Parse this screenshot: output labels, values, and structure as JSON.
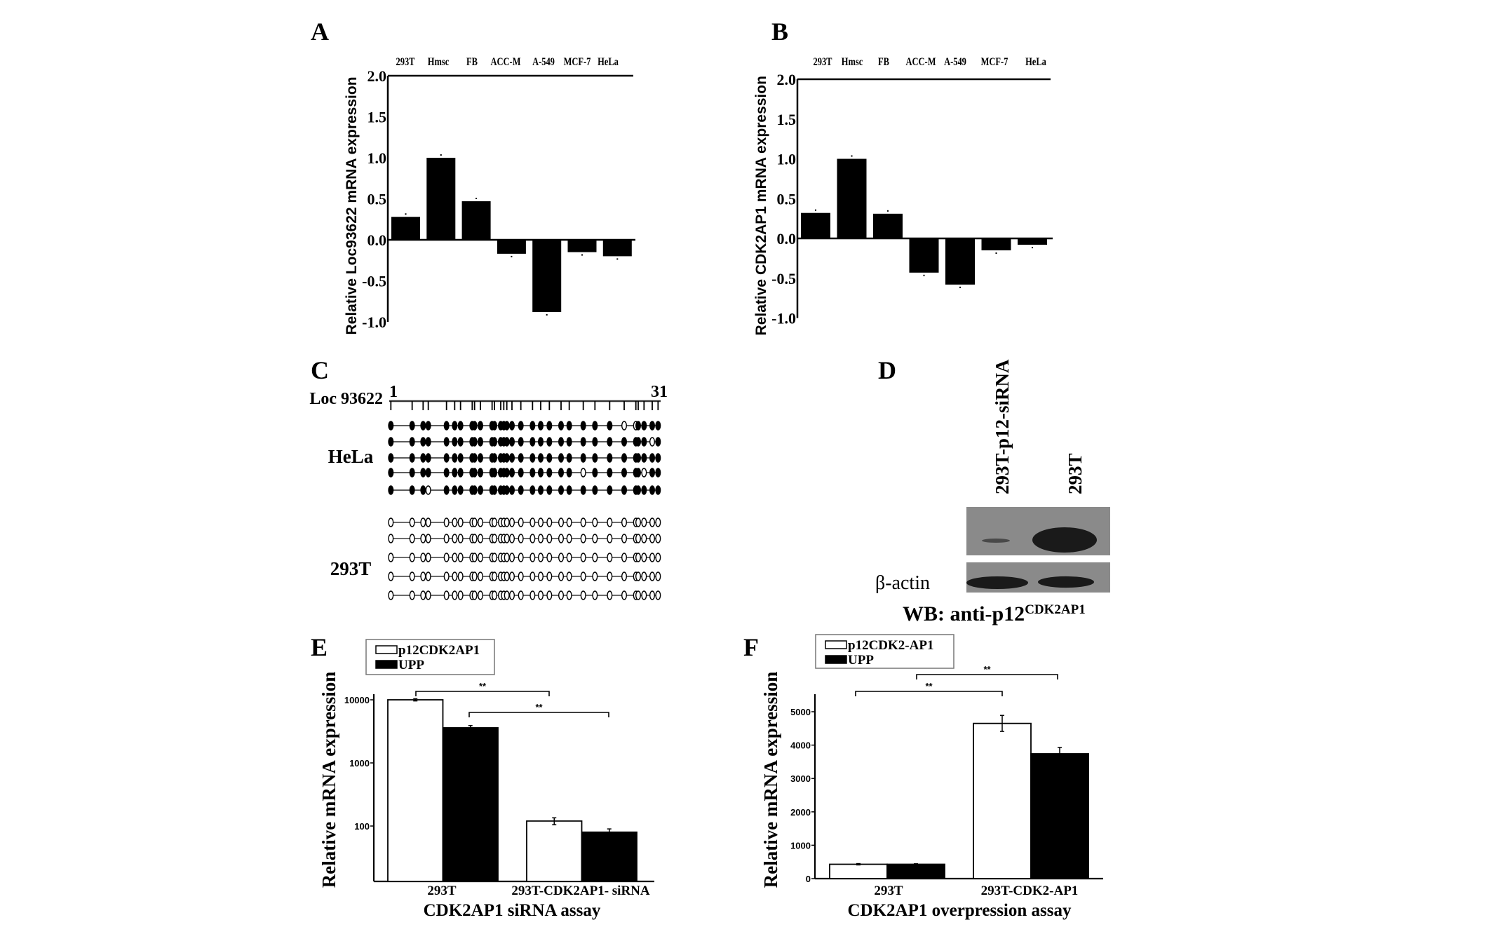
{
  "panel_letters": [
    "A",
    "B",
    "C",
    "D",
    "E",
    "F"
  ],
  "chart_data": [
    {
      "panel": "A",
      "type": "bar",
      "categories": [
        "293T",
        "Hmsc",
        "FB",
        "ACC-M",
        "A-549",
        "MCF-7",
        "HeLa"
      ],
      "values": [
        0.28,
        1.0,
        0.47,
        -0.17,
        -0.88,
        -0.15,
        -0.2
      ],
      "ylabel": "Relative Loc93622 mRNA expression",
      "ylim": [
        -1.0,
        2.0
      ],
      "yticks": [
        "2.0",
        "1.5",
        "1.0",
        "0.5",
        "0.0",
        "-0.5",
        "-1.0"
      ]
    },
    {
      "panel": "B",
      "type": "bar",
      "categories": [
        "293T",
        "Hmsc",
        "FB",
        "ACC-M",
        "A-549",
        "MCF-7",
        "HeLa"
      ],
      "values": [
        0.32,
        1.0,
        0.31,
        -0.43,
        -0.58,
        -0.15,
        -0.08
      ],
      "ylabel": "Relative CDK2AP1 mRNA expression",
      "ylim": [
        -1.0,
        2.0
      ],
      "yticks": [
        "2.0",
        "1.5",
        "1.0",
        "0.5",
        "0.0",
        "-0.5",
        "-1.0"
      ]
    },
    {
      "panel": "C",
      "type": "heatmap",
      "label": "Loc 93622",
      "start_label": "1",
      "end_label": "31",
      "groups": [
        {
          "name": "HeLa",
          "rows": [
            [
              1,
              1,
              1,
              1,
              1,
              1,
              1,
              1,
              1,
              1,
              1,
              1,
              1,
              1,
              1,
              1,
              1,
              1,
              1,
              1,
              1,
              1,
              1,
              1,
              1,
              0,
              0,
              1,
              1,
              1,
              1
            ],
            [
              1,
              1,
              1,
              1,
              1,
              1,
              1,
              1,
              1,
              1,
              1,
              1,
              1,
              1,
              1,
              1,
              1,
              1,
              1,
              1,
              1,
              1,
              1,
              1,
              1,
              1,
              1,
              1,
              1,
              0,
              1
            ],
            [
              1,
              1,
              1,
              1,
              1,
              1,
              1,
              1,
              1,
              1,
              1,
              1,
              1,
              1,
              1,
              1,
              1,
              1,
              1,
              1,
              1,
              1,
              1,
              1,
              1,
              1,
              1,
              1,
              1,
              1,
              1
            ],
            [
              1,
              1,
              1,
              1,
              1,
              1,
              1,
              1,
              1,
              1,
              1,
              1,
              1,
              1,
              1,
              1,
              1,
              1,
              1,
              1,
              1,
              1,
              0,
              1,
              1,
              1,
              1,
              1,
              0,
              1,
              1
            ],
            [
              1,
              1,
              1,
              0,
              1,
              1,
              1,
              1,
              1,
              1,
              1,
              1,
              1,
              1,
              1,
              1,
              1,
              1,
              1,
              1,
              1,
              1,
              1,
              1,
              1,
              1,
              1,
              1,
              1,
              1,
              1
            ]
          ]
        },
        {
          "name": "293T",
          "rows": [
            [
              0,
              0,
              0,
              0,
              0,
              0,
              0,
              0,
              0,
              0,
              0,
              0,
              0,
              0,
              0,
              0,
              0,
              0,
              0,
              0,
              0,
              0,
              0,
              0,
              0,
              0,
              0,
              0,
              0,
              0,
              0
            ],
            [
              0,
              0,
              0,
              0,
              0,
              0,
              0,
              0,
              0,
              0,
              0,
              0,
              0,
              0,
              0,
              0,
              0,
              0,
              0,
              0,
              0,
              0,
              0,
              0,
              0,
              0,
              0,
              0,
              0,
              0,
              0
            ],
            [
              0,
              0,
              0,
              0,
              0,
              0,
              0,
              0,
              0,
              0,
              0,
              0,
              0,
              0,
              0,
              0,
              0,
              0,
              0,
              0,
              0,
              0,
              0,
              0,
              0,
              0,
              0,
              0,
              0,
              0,
              0
            ],
            [
              0,
              0,
              0,
              0,
              0,
              0,
              0,
              0,
              0,
              0,
              0,
              0,
              0,
              0,
              0,
              0,
              0,
              0,
              0,
              0,
              0,
              0,
              0,
              0,
              0,
              0,
              0,
              0,
              0,
              0,
              0
            ],
            [
              0,
              0,
              0,
              0,
              0,
              0,
              0,
              0,
              0,
              0,
              0,
              0,
              0,
              0,
              0,
              0,
              0,
              0,
              0,
              0,
              0,
              0,
              0,
              0,
              0,
              0,
              0,
              0,
              0,
              0,
              0
            ]
          ]
        }
      ]
    },
    {
      "panel": "D",
      "type": "western-blot",
      "lanes": [
        "293T-p12-siRNA",
        "293T"
      ],
      "target_band_intensity": [
        0.15,
        1.0
      ],
      "loading_control": "β-actin",
      "loading_band_intensity": [
        1.0,
        0.9
      ],
      "antibody_label": "WB: anti-p12",
      "antibody_superscript": "CDK2AP1"
    },
    {
      "panel": "E",
      "type": "bar",
      "scale": "log",
      "categories": [
        "293T",
        "293T-CDK2AP1- siRNA"
      ],
      "series": [
        {
          "name": "p12CDK2AP1",
          "color": "#ffffff",
          "values": [
            10000,
            120
          ],
          "errors": [
            400,
            15
          ]
        },
        {
          "name": "UPP",
          "color": "#000000",
          "values": [
            3600,
            80
          ],
          "errors": [
            300,
            10
          ]
        }
      ],
      "ylabel": "Relative mRNA expression",
      "xlabel": "CDK2AP1 siRNA assay",
      "yticks": [
        "10000",
        "1000",
        "100"
      ],
      "significance": [
        "**",
        "**"
      ]
    },
    {
      "panel": "F",
      "type": "bar",
      "categories": [
        "293T",
        "293T-CDK2-AP1"
      ],
      "series": [
        {
          "name": "p12CDK2-AP1",
          "color": "#ffffff",
          "values": [
            430,
            4650
          ],
          "errors": [
            20,
            240
          ]
        },
        {
          "name": "UPP",
          "color": "#000000",
          "values": [
            430,
            3740
          ],
          "errors": [
            15,
            190
          ]
        }
      ],
      "ylabel": "Relative mRNA expression",
      "xlabel": "CDK2AP1 overpression assay",
      "ylim": [
        0,
        5500
      ],
      "yticks": [
        "5000",
        "4000",
        "3000",
        "2000",
        "1000",
        "0"
      ],
      "significance": [
        "**",
        "**"
      ]
    }
  ]
}
